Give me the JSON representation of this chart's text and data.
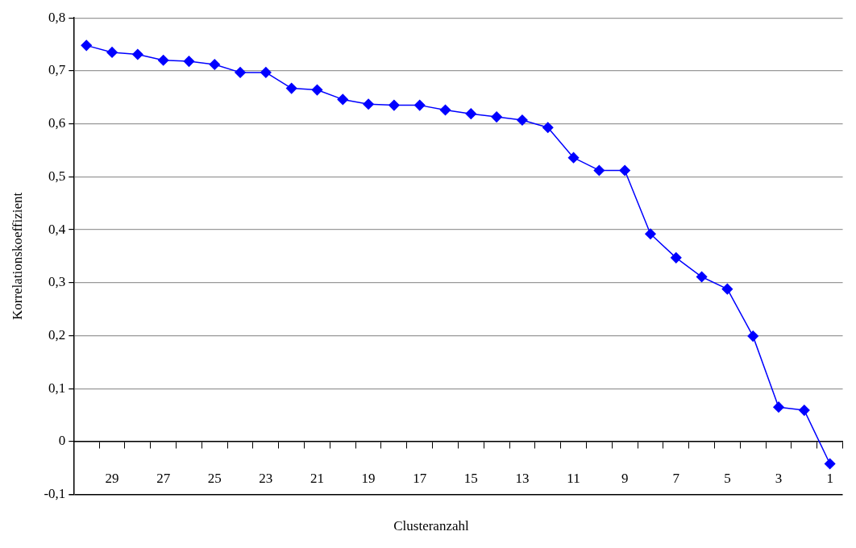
{
  "chart_data": {
    "type": "line",
    "xlabel": "Clusteranzahl",
    "ylabel": "Korrelationskoeffizient",
    "categories": [
      null,
      "29",
      null,
      "27",
      null,
      "25",
      null,
      "23",
      null,
      "21",
      null,
      "19",
      null,
      "17",
      null,
      "15",
      null,
      "13",
      null,
      "11",
      null,
      "9",
      null,
      "7",
      null,
      "5",
      null,
      "3",
      null,
      "1"
    ],
    "series": [
      {
        "color": "#0000ff",
        "values": [
          0.748,
          0.735,
          0.731,
          0.72,
          0.718,
          0.712,
          0.697,
          0.697,
          0.667,
          0.664,
          0.646,
          0.637,
          0.635,
          0.635,
          0.626,
          0.619,
          0.613,
          0.607,
          0.593,
          0.536,
          0.512,
          0.512,
          0.392,
          0.347,
          0.311,
          0.288,
          0.199,
          0.065,
          0.059,
          -0.042
        ]
      }
    ],
    "ylim": [
      -0.1,
      0.8
    ],
    "yticks": [
      {
        "value": -0.1,
        "label": "-0,1"
      },
      0,
      {
        "value": 0.1,
        "label": "0,1"
      },
      {
        "value": 0.2,
        "label": "0,2"
      },
      {
        "value": 0.3,
        "label": "0,3"
      },
      {
        "value": 0.4,
        "label": "0,4"
      },
      {
        "value": 0.5,
        "label": "0,5"
      },
      {
        "value": 0.6,
        "label": "0,6"
      },
      {
        "value": 0.7,
        "label": "0,7"
      },
      {
        "value": 0.8,
        "label": "0,8"
      }
    ],
    "grid": "y",
    "legend": false,
    "marker": "diamond",
    "line_style": "solid"
  }
}
